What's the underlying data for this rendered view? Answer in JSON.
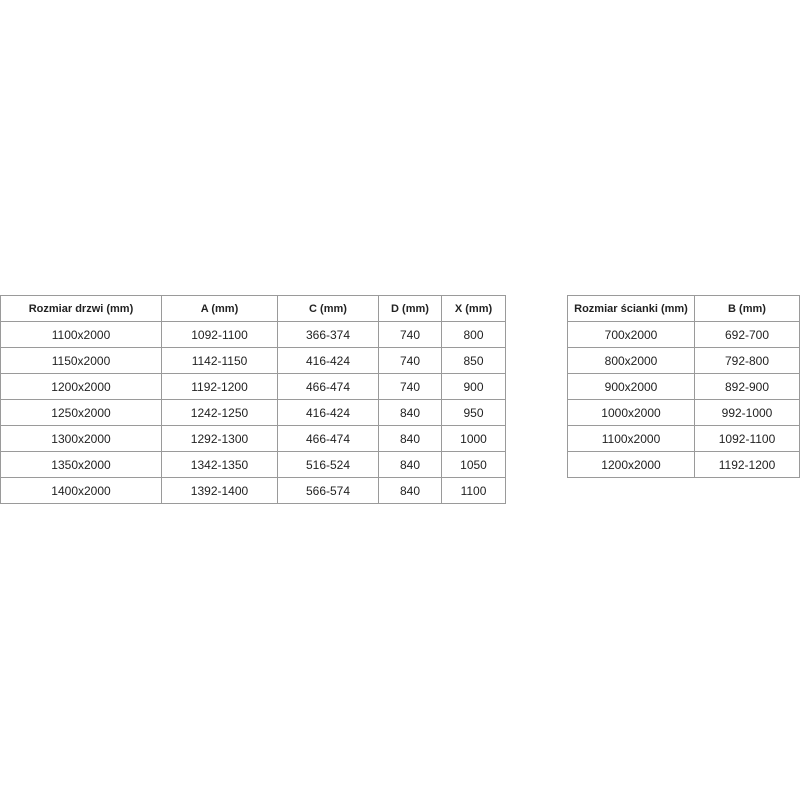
{
  "door_table": {
    "headers": [
      "Rozmiar drzwi (mm)",
      "A (mm)",
      "C (mm)",
      "D (mm)",
      "X (mm)"
    ],
    "rows": [
      [
        "1100x2000",
        "1092-1100",
        "366-374",
        "740",
        "800"
      ],
      [
        "1150x2000",
        "1142-1150",
        "416-424",
        "740",
        "850"
      ],
      [
        "1200x2000",
        "1192-1200",
        "466-474",
        "740",
        "900"
      ],
      [
        "1250x2000",
        "1242-1250",
        "416-424",
        "840",
        "950"
      ],
      [
        "1300x2000",
        "1292-1300",
        "466-474",
        "840",
        "1000"
      ],
      [
        "1350x2000",
        "1342-1350",
        "516-524",
        "840",
        "1050"
      ],
      [
        "1400x2000",
        "1392-1400",
        "566-574",
        "840",
        "1100"
      ]
    ]
  },
  "wall_table": {
    "headers": [
      "Rozmiar ścianki (mm)",
      "B (mm)"
    ],
    "rows": [
      [
        "700x2000",
        "692-700"
      ],
      [
        "800x2000",
        "792-800"
      ],
      [
        "900x2000",
        "892-900"
      ],
      [
        "1000x2000",
        "992-1000"
      ],
      [
        "1100x2000",
        "1092-1100"
      ],
      [
        "1200x2000",
        "1192-1200"
      ]
    ]
  }
}
